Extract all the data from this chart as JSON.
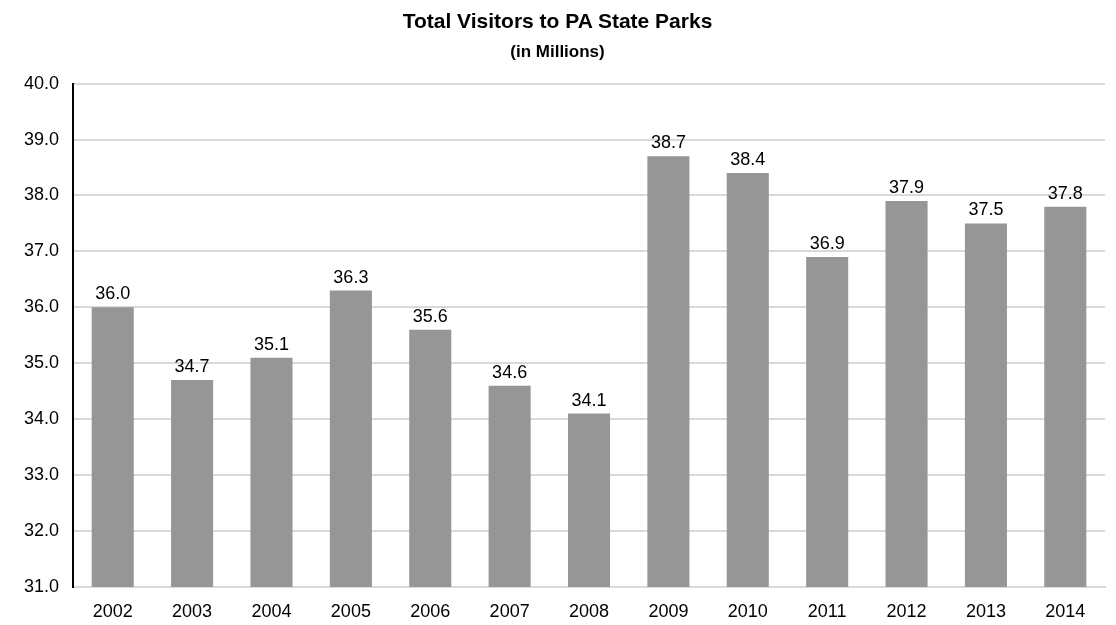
{
  "chart_data": {
    "type": "bar",
    "title": "Total Visitors to PA State Parks",
    "subtitle": "(in Millions)",
    "categories": [
      "2002",
      "2003",
      "2004",
      "2005",
      "2006",
      "2007",
      "2008",
      "2009",
      "2010",
      "2011",
      "2012",
      "2013",
      "2014"
    ],
    "values": [
      36.0,
      34.7,
      35.1,
      36.3,
      35.6,
      34.6,
      34.1,
      38.7,
      38.4,
      36.9,
      37.9,
      37.5,
      37.8
    ],
    "value_labels": [
      "36.0",
      "34.7",
      "35.1",
      "36.3",
      "35.6",
      "34.6",
      "34.1",
      "38.7",
      "38.4",
      "36.9",
      "37.9",
      "37.5",
      "37.8"
    ],
    "color": "#969696",
    "ylim": [
      31,
      40
    ],
    "yticks": [
      {
        "value": 31,
        "label": "31.0"
      },
      {
        "value": 32,
        "label": "32.0"
      },
      {
        "value": 33,
        "label": "33.0"
      },
      {
        "value": 34,
        "label": "34.0"
      },
      {
        "value": 35,
        "label": "35.0"
      },
      {
        "value": 36,
        "label": "36.0"
      },
      {
        "value": 37,
        "label": "37.0"
      },
      {
        "value": 38,
        "label": "38.0"
      },
      {
        "value": 39,
        "label": "39.0"
      },
      {
        "value": 40,
        "label": "40.0"
      }
    ],
    "grid": "y"
  }
}
